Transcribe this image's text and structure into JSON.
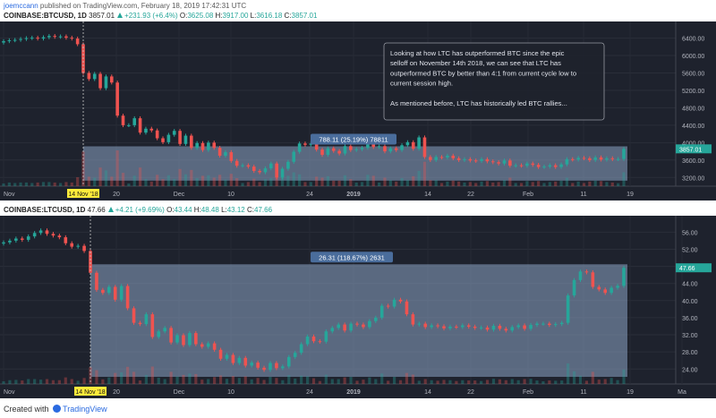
{
  "header": {
    "author": "joemccann",
    "published_text": "published on TradingView.com, February 18, 2019 17:42:31 UTC"
  },
  "colors": {
    "up": "#26a69a",
    "down": "#ef5350",
    "background": "#1e222d",
    "highlight": "#ffeb3b"
  },
  "panels": [
    {
      "symbol": "COINBASE:BTCUSD, 1D",
      "last": "3857.01",
      "change": "+231.93 (+6.4%)",
      "ohlc": {
        "o_label": "O:",
        "o": "3625.08",
        "h_label": "H:",
        "h": "3917.00",
        "l_label": "L:",
        "l": "3616.18",
        "c_label": "C:",
        "c": "3857.01"
      },
      "y_ticks": [
        "6400.00",
        "6000.00",
        "5600.00",
        "5200.00",
        "4800.00",
        "4400.00",
        "4000.00",
        "3600.00",
        "3200.00"
      ],
      "price_tag": "3857.01",
      "measure_label": "788.11 (25.19%) 78811",
      "x_ticks": [
        "Nov",
        "20",
        "Dec",
        "10",
        "24",
        "2019",
        "14",
        "22",
        "Feb",
        "11",
        "19"
      ],
      "date_tag": "14 Nov '18",
      "note_lines": [
        "Looking at how LTC has outperformed BTC since the epic",
        "selloff on November 14th 2018, we can see that LTC has",
        "outperformed BTC by better than 4:1 from current cycle low to",
        "current session high.",
        "",
        "As mentioned before, LTC has historically led BTC rallies..."
      ]
    },
    {
      "symbol": "COINBASE:LTCUSD, 1D",
      "last": "47.66",
      "change": "+4.21 (+9.69%)",
      "ohlc": {
        "o_label": "O:",
        "o": "43.44",
        "h_label": "H:",
        "h": "48.48",
        "l_label": "L:",
        "l": "43.12",
        "c_label": "C:",
        "c": "47.66"
      },
      "y_ticks": [
        "56.00",
        "52.00",
        "48.00",
        "44.00",
        "40.00",
        "36.00",
        "32.00",
        "28.00",
        "24.00"
      ],
      "price_tag": "47.66",
      "measure_label": "26.31 (118.67%) 2631",
      "x_ticks": [
        "Nov",
        "20",
        "Dec",
        "10",
        "24",
        "2019",
        "14",
        "22",
        "Feb",
        "11",
        "19",
        "Ma"
      ],
      "date_tag": "14 Nov '18"
    }
  ],
  "chart_data": [
    {
      "type": "candlestick",
      "title": "COINBASE:BTCUSD, 1D",
      "ylim": [
        3000,
        6700
      ],
      "y_ticks": [
        6400,
        6000,
        5600,
        5200,
        4800,
        4400,
        4000,
        3600,
        3200
      ],
      "x_ticks": [
        "Nov",
        "20",
        "Dec",
        "10",
        "24",
        "2019",
        "14",
        "22",
        "Feb",
        "11",
        "19"
      ],
      "close_series_approx": [
        6330,
        6350,
        6360,
        6380,
        6400,
        6410,
        6390,
        6420,
        6450,
        6430,
        6440,
        6410,
        6390,
        6260,
        5600,
        5460,
        5580,
        5250,
        5520,
        5380,
        4620,
        4400,
        4400,
        4560,
        4230,
        4320,
        4280,
        4100,
        4010,
        4180,
        4270,
        3970,
        4160,
        3880,
        3990,
        3830,
        4000,
        3880,
        3700,
        3780,
        3580,
        3470,
        3480,
        3450,
        3350,
        3320,
        3410,
        3520,
        3200,
        3400,
        3560,
        3790,
        3980,
        3950,
        3980,
        3840,
        3720,
        3870,
        3810,
        3750,
        3920,
        3830,
        3850,
        3880,
        4060,
        3900,
        3920,
        3800,
        3870,
        3830,
        3940,
        4010,
        3860,
        4120,
        3670,
        3600,
        3670,
        3660,
        3700,
        3640,
        3600,
        3620,
        3590,
        3580,
        3620,
        3570,
        3550,
        3520,
        3590,
        3470,
        3480,
        3470,
        3520,
        3490,
        3440,
        3450,
        3480,
        3440,
        3500,
        3620,
        3610,
        3650,
        3640,
        3600,
        3660,
        3610,
        3640,
        3620,
        3625,
        3857.01
      ],
      "measured_move": {
        "from": 3127,
        "to": 3915,
        "change": 788.11,
        "percent": 25.19
      },
      "last_price": 3857.01
    },
    {
      "type": "candlestick",
      "title": "COINBASE:LTCUSD, 1D",
      "ylim": [
        20.5,
        59
      ],
      "y_ticks": [
        56,
        52,
        48,
        44,
        40,
        36,
        32,
        28,
        24
      ],
      "x_ticks": [
        "Nov",
        "20",
        "Dec",
        "10",
        "24",
        "2019",
        "14",
        "22",
        "Feb",
        "11",
        "19",
        "Ma"
      ],
      "close_series_approx": [
        53.6,
        54.0,
        54.5,
        54.2,
        55.0,
        55.8,
        56.4,
        55.6,
        55.2,
        54.8,
        53.4,
        52.6,
        52.8,
        51.6,
        46.5,
        42.5,
        41.8,
        43.2,
        40.2,
        43.4,
        38.2,
        34.8,
        34.5,
        36.8,
        31.5,
        32.8,
        33.6,
        30.2,
        31.9,
        29.6,
        32.4,
        29.8,
        29.2,
        30.0,
        28.5,
        26.4,
        27.3,
        25.4,
        26.6,
        24.8,
        25.5,
        24.3,
        23.8,
        25.4,
        24.2,
        24.6,
        26.8,
        27.8,
        29.8,
        31.6,
        30.5,
        30.4,
        32.8,
        33.6,
        34.4,
        33.0,
        34.6,
        34.4,
        33.8,
        35.2,
        36.0,
        38.8,
        38.6,
        40.2,
        39.8,
        36.8,
        34.4,
        34.6,
        33.8,
        34.2,
        34.0,
        33.5,
        33.9,
        33.8,
        34.2,
        33.9,
        33.6,
        33.7,
        33.2,
        34.1,
        33.4,
        33.0,
        33.8,
        34.2,
        33.4,
        34.3,
        34.6,
        34.6,
        34.3,
        34.5,
        34.8,
        41.2,
        44.8,
        46.8,
        46.6,
        43.2,
        42.6,
        41.8,
        43.0,
        43.44,
        47.66
      ],
      "measured_move": {
        "from": 22.17,
        "to": 48.48,
        "change": 26.31,
        "percent": 118.67
      },
      "last_price": 47.66
    }
  ]
}
